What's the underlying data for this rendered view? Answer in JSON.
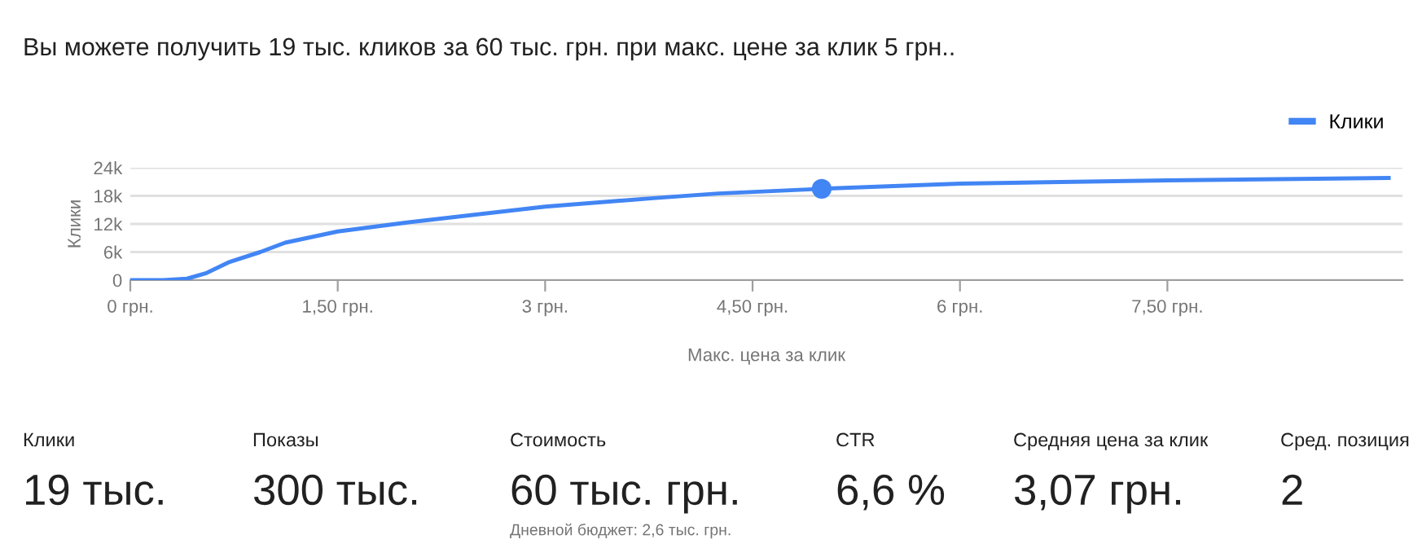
{
  "chart_data": [
    {
      "type": "line",
      "title": "Вы можете получить 19 тыс. кликов за 60 тыс. грн. при макс. цене за клик 5 грн..",
      "xlabel": "Макс. цена за клик",
      "ylabel": "Клики",
      "series": [
        {
          "name": "Клики",
          "color": "#4285f4",
          "x": [
            0,
            0.24,
            0.41,
            0.55,
            0.71,
            0.94,
            1.12,
            1.5,
            2.0,
            3.0,
            3.78,
            4.25,
            5.0,
            6.0,
            7.5,
            9.1
          ],
          "values": [
            0,
            0,
            300,
            1500,
            3800,
            6000,
            8000,
            10400,
            12300,
            15700,
            17500,
            18500,
            19500,
            20600,
            21300,
            21800
          ]
        },
        {
          "type": "scatter",
          "marker": "circle",
          "color": "#4285f4",
          "x": [
            5.0
          ],
          "values": [
            19500
          ]
        }
      ],
      "xlim": [
        0,
        9.2
      ],
      "xticks": [
        {
          "value": 0,
          "label": "0 грн."
        },
        {
          "value": 1.5,
          "label": "1,50 грн."
        },
        {
          "value": 3,
          "label": "3 грн."
        },
        {
          "value": 4.5,
          "label": "4,50 грн."
        },
        {
          "value": 6,
          "label": "6 грн."
        },
        {
          "value": 7.5,
          "label": "7,50 грн."
        }
      ],
      "ylim": [
        0,
        24000
      ],
      "yticks": [
        {
          "value": 0,
          "label": "0"
        },
        {
          "value": 6000,
          "label": "6k"
        },
        {
          "value": 12000,
          "label": "12k"
        },
        {
          "value": 18000,
          "label": "18k"
        },
        {
          "value": 24000,
          "label": "24k"
        }
      ],
      "grid": "y",
      "legend": "top right"
    },
    {
      "type": "other",
      "annotations": [
        "Клики",
        "Показы",
        "Стоимость",
        "CTR",
        "Средняя цена за клик",
        "Сред. позиция",
        "19 тыс.",
        "300 тыс.",
        "60 тыс. грн.",
        "6,6 %",
        "3,07 грн.",
        "2",
        "Дневной бюджет: 2,6 тыс. грн."
      ]
    }
  ]
}
